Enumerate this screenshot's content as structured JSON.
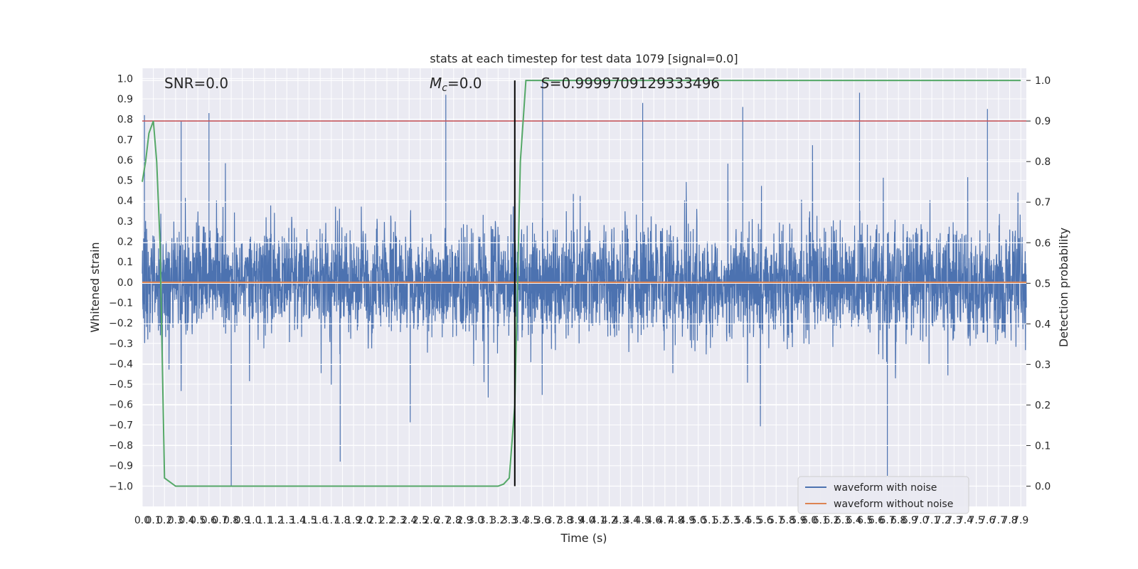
{
  "chart_data": {
    "type": "line",
    "title": "stats at each timestep for test data 1079 [signal=0.0]",
    "xlabel": "Time (s)",
    "ylabel": "Whitened strain",
    "ylabel_right": "Detection probability",
    "xlim": [
      0.0,
      7.95
    ],
    "ylim": [
      -1.1,
      1.05
    ],
    "ylim_right": [
      -0.05,
      1.03
    ],
    "x_ticks": [
      "0.0",
      "0.1",
      "0.2",
      "0.3",
      "0.4",
      "0.5",
      "0.6",
      "0.7",
      "0.8",
      "0.9",
      "1.0",
      "1.1",
      "1.2",
      "1.3",
      "1.4",
      "1.5",
      "1.6",
      "1.7",
      "1.8",
      "1.9",
      "2.0",
      "2.1",
      "2.2",
      "2.3",
      "2.4",
      "2.5",
      "2.6",
      "2.7",
      "2.8",
      "2.9",
      "3.0",
      "3.1",
      "3.2",
      "3.3",
      "3.4",
      "3.5",
      "3.6",
      "3.7",
      "3.8",
      "3.9",
      "4.0",
      "4.1",
      "4.2",
      "4.3",
      "4.4",
      "4.5",
      "4.6",
      "4.7",
      "4.8",
      "4.9",
      "5.0",
      "5.1",
      "5.2",
      "5.3",
      "5.4",
      "5.5",
      "5.6",
      "5.7",
      "5.8",
      "5.9",
      "6.0",
      "6.1",
      "6.2",
      "6.3",
      "6.4",
      "6.5",
      "6.6",
      "6.7",
      "6.8",
      "6.9",
      "7.0",
      "7.1",
      "7.2",
      "7.3",
      "7.4",
      "7.5",
      "7.6",
      "7.7",
      "7.8",
      "7.9"
    ],
    "y_ticks": [
      "−1.0",
      "−0.9",
      "−0.8",
      "−0.7",
      "−0.6",
      "−0.5",
      "−0.4",
      "−0.3",
      "−0.2",
      "−0.1",
      "0.0",
      "0.1",
      "0.2",
      "0.3",
      "0.4",
      "0.5",
      "0.6",
      "0.7",
      "0.8",
      "0.9",
      "1.0"
    ],
    "y_ticks_right": [
      "0.0",
      "0.1",
      "0.2",
      "0.3",
      "0.4",
      "0.5",
      "0.6",
      "0.7",
      "0.8",
      "0.9",
      "1.0"
    ],
    "grid": true,
    "legend_position": "lower-right",
    "annotations": {
      "snr": "SNR=0.0",
      "mc": "M",
      "mc_sub": "c",
      "mc_value": "=0.0",
      "s_italic": "S",
      "s_value": "=0.9999709129333496"
    },
    "series": [
      {
        "name": "waveform with noise",
        "axis": "left",
        "color": "#4c72b0",
        "description_values": "dense noise, roughly ±0.35 core amplitude with spikes to about ±0.95",
        "peaks": [
          {
            "x": 0.02,
            "y": 0.82
          },
          {
            "x": 0.35,
            "y": 0.79
          },
          {
            "x": 0.6,
            "y": 0.83
          },
          {
            "x": 2.73,
            "y": 0.92
          },
          {
            "x": 3.6,
            "y": 0.98
          },
          {
            "x": 4.5,
            "y": 0.88
          },
          {
            "x": 5.4,
            "y": 0.86
          },
          {
            "x": 6.45,
            "y": 0.93
          },
          {
            "x": 7.6,
            "y": 0.85
          },
          {
            "x": 0.8,
            "y": -1.0
          },
          {
            "x": 1.78,
            "y": -0.88
          },
          {
            "x": 6.7,
            "y": -0.95
          }
        ]
      },
      {
        "name": "waveform without noise",
        "axis": "left",
        "color": "#dd8452",
        "x": [
          0.0,
          7.95
        ],
        "y": [
          0.0,
          0.0
        ]
      },
      {
        "axis": "right",
        "color": "#55a868",
        "x": [
          0.0,
          0.03,
          0.06,
          0.1,
          0.13,
          0.16,
          0.2,
          0.25,
          0.3,
          0.5,
          1.0,
          2.0,
          3.0,
          3.2,
          3.25,
          3.3,
          3.35,
          3.4,
          3.45,
          3.5,
          4.0,
          5.0,
          6.0,
          7.0,
          7.9
        ],
        "y": [
          0.75,
          0.8,
          0.87,
          0.9,
          0.8,
          0.6,
          0.02,
          0.01,
          0.0,
          0.0,
          0.0,
          0.0,
          0.0,
          0.0,
          0.005,
          0.02,
          0.2,
          0.8,
          1.0,
          1.0,
          1.0,
          1.0,
          1.0,
          1.0,
          1.0
        ]
      }
    ],
    "reference_lines": {
      "threshold_right": 0.9,
      "threshold_color": "#c44e52",
      "vertical_x": 3.35,
      "vertical_color": "#000000"
    }
  }
}
